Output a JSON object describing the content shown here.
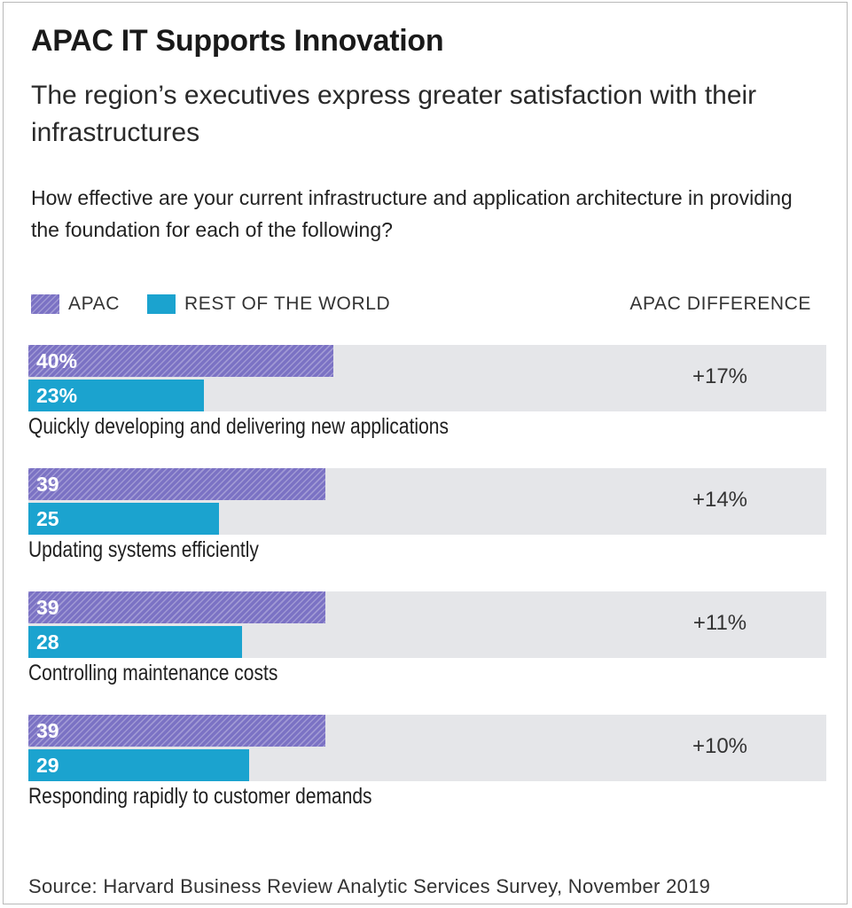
{
  "title": "APAC IT Supports Innovation",
  "subtitle": "The region’s executives express greater satisfaction with their infrastructures",
  "question": "How effective are your current infrastructure and application architecture in providing the foundation for each of the following?",
  "legend": {
    "apac": "APAC",
    "rest": "REST OF THE WORLD",
    "difference_header": "APAC DIFFERENCE"
  },
  "colors": {
    "apac": "#7b72c4",
    "rest": "#1ba3cf",
    "row_background": "#e5e6e9"
  },
  "source": "Source: Harvard Business Review Analytic Services Survey, November 2019",
  "chart_data": {
    "type": "bar",
    "orientation": "horizontal",
    "categories": [
      "Quickly developing and delivering new applications",
      "Updating systems efficiently",
      "Controlling maintenance costs",
      "Responding rapidly to customer demands"
    ],
    "series": [
      {
        "name": "APAC",
        "values": [
          40,
          39,
          39,
          39
        ],
        "labels": [
          "40%",
          "39",
          "39",
          "39"
        ]
      },
      {
        "name": "REST OF THE WORLD",
        "values": [
          23,
          25,
          28,
          29
        ],
        "labels": [
          "23%",
          "25",
          "28",
          "29"
        ]
      }
    ],
    "differences": [
      "+17%",
      "+14%",
      "+11%",
      "+10%"
    ],
    "xlim": [
      0,
      100
    ],
    "legend_position": "top-left"
  }
}
